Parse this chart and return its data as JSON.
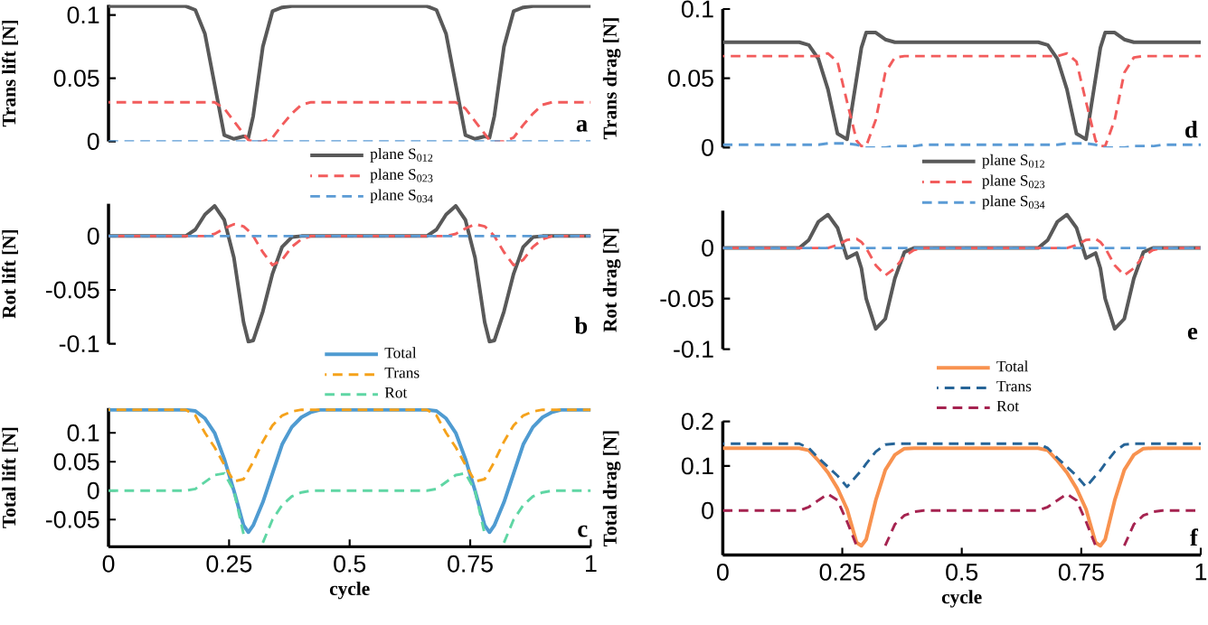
{
  "chart_data": [
    {
      "type": "line",
      "ylabel": "Trans lift [N]",
      "marker": "none",
      "legend": "bottom",
      "tick_labels": "y",
      "annotations": [
        "a"
      ],
      "xlim": [
        0,
        1
      ],
      "ylim": [
        0,
        0.108
      ],
      "yticks": [
        0,
        0.05,
        0.1
      ],
      "x": [
        0,
        0.1,
        0.16,
        0.18,
        0.2,
        0.22,
        0.24,
        0.26,
        0.28,
        0.29,
        0.3,
        0.32,
        0.34,
        0.36,
        0.38,
        0.4,
        0.42,
        0.44,
        0.47,
        0.55,
        0.6,
        0.66,
        0.68,
        0.7,
        0.72,
        0.74,
        0.76,
        0.78,
        0.79,
        0.8,
        0.82,
        0.84,
        0.86,
        0.88,
        0.9,
        0.92,
        0.94,
        0.97,
        1
      ],
      "series": [
        {
          "name": "plane S$_{012}$",
          "color": "#595959",
          "line_style": "solid",
          "values": [
            0.107,
            0.107,
            0.107,
            0.104,
            0.085,
            0.045,
            0.005,
            0.002,
            0.004,
            0.003,
            0.02,
            0.075,
            0.103,
            0.106,
            0.107,
            0.107,
            0.107,
            0.107,
            0.107,
            0.107,
            0.107,
            0.107,
            0.104,
            0.085,
            0.045,
            0.005,
            0.002,
            0.004,
            0.003,
            0.02,
            0.075,
            0.103,
            0.106,
            0.107,
            0.107,
            0.107,
            0.107,
            0.107,
            0.107
          ]
        },
        {
          "name": "plane S$_{023}$",
          "color": "#f25c5c",
          "line_style": "dashed",
          "values": [
            0.031,
            0.031,
            0.031,
            0.031,
            0.031,
            0.031,
            0.026,
            0.016,
            0.006,
            0.001,
            0,
            0,
            0.003,
            0.013,
            0.022,
            0.029,
            0.031,
            0.031,
            0.031,
            0.031,
            0.031,
            0.031,
            0.031,
            0.031,
            0.031,
            0.026,
            0.016,
            0.006,
            0.001,
            0,
            0,
            0.003,
            0.013,
            0.022,
            0.029,
            0.031,
            0.031,
            0.031,
            0.031
          ]
        },
        {
          "name": "plane S$_{034}$",
          "color": "#5b9bd5",
          "line_style": "dashed",
          "values": [
            0,
            0,
            0,
            0,
            0,
            0,
            0,
            0,
            0,
            0,
            0,
            0,
            0,
            0,
            0,
            0,
            0,
            0,
            0,
            0,
            0,
            0,
            0,
            0,
            0,
            0,
            0,
            0,
            0,
            0,
            0,
            0,
            0,
            0,
            0,
            0,
            0,
            0,
            0
          ]
        }
      ]
    },
    {
      "type": "line",
      "ylabel": "Rot lift [N]",
      "marker": "none",
      "tick_labels": "y",
      "annotations": [
        "b"
      ],
      "xlim": [
        0,
        1
      ],
      "ylim": [
        -0.1,
        0.03
      ],
      "yticks": [
        -0.1,
        -0.05,
        0
      ],
      "x": [
        0,
        0.1,
        0.16,
        0.18,
        0.2,
        0.22,
        0.24,
        0.26,
        0.28,
        0.29,
        0.3,
        0.32,
        0.34,
        0.36,
        0.38,
        0.4,
        0.42,
        0.44,
        0.47,
        0.55,
        0.6,
        0.66,
        0.68,
        0.7,
        0.72,
        0.74,
        0.76,
        0.78,
        0.79,
        0.8,
        0.82,
        0.84,
        0.86,
        0.88,
        0.9,
        0.92,
        0.94,
        0.97,
        1
      ],
      "series": [
        {
          "color": "#595959",
          "line_style": "solid",
          "values": [
            0,
            0,
            0,
            0.006,
            0.02,
            0.028,
            0.015,
            -0.02,
            -0.08,
            -0.098,
            -0.097,
            -0.07,
            -0.035,
            -0.01,
            -0.001,
            0,
            0,
            0,
            0,
            0,
            0,
            0,
            0.006,
            0.02,
            0.028,
            0.015,
            -0.02,
            -0.08,
            -0.098,
            -0.097,
            -0.07,
            -0.035,
            -0.01,
            -0.001,
            0,
            0,
            0,
            0,
            0
          ]
        },
        {
          "color": "#f25c5c",
          "line_style": "dashed",
          "values": [
            0,
            0,
            0,
            0,
            0,
            0.002,
            0.007,
            0.011,
            0.009,
            0.005,
            0,
            -0.015,
            -0.027,
            -0.022,
            -0.01,
            -0.003,
            0,
            0,
            0,
            0,
            0,
            0,
            0,
            0,
            0.002,
            0.007,
            0.011,
            0.009,
            0.005,
            0,
            -0.015,
            -0.027,
            -0.022,
            -0.01,
            -0.003,
            0,
            0,
            0,
            0
          ]
        },
        {
          "color": "#5b9bd5",
          "line_style": "dashed",
          "values": [
            0,
            0,
            0,
            0,
            0,
            0,
            0,
            0,
            0,
            0,
            0,
            0,
            0,
            0,
            0,
            0,
            0,
            0,
            0,
            0,
            0,
            0,
            0,
            0,
            0,
            0,
            0,
            0,
            0,
            0,
            0,
            0,
            0,
            0,
            0,
            0,
            0,
            0,
            0
          ]
        }
      ]
    },
    {
      "type": "line",
      "ylabel": "Total lift [N]",
      "xlabel": "cycle",
      "marker": "none",
      "legend": "top",
      "annotations": [
        "c"
      ],
      "xlim": [
        0,
        1
      ],
      "xticks": [
        0,
        0.25,
        0.5,
        0.75,
        1
      ],
      "ylim": [
        -0.097,
        0.143
      ],
      "yticks": [
        -0.05,
        0,
        0.05,
        0.1
      ],
      "x": [
        0,
        0.1,
        0.16,
        0.18,
        0.2,
        0.22,
        0.24,
        0.26,
        0.28,
        0.29,
        0.3,
        0.32,
        0.34,
        0.36,
        0.38,
        0.4,
        0.42,
        0.44,
        0.47,
        0.55,
        0.6,
        0.66,
        0.68,
        0.7,
        0.72,
        0.74,
        0.76,
        0.78,
        0.79,
        0.8,
        0.82,
        0.84,
        0.86,
        0.88,
        0.9,
        0.92,
        0.94,
        0.97,
        1
      ],
      "series": [
        {
          "name": "Total",
          "color": "#4f9bd1",
          "line_style": "solid",
          "values": [
            0.14,
            0.14,
            0.14,
            0.138,
            0.125,
            0.1,
            0.055,
            0,
            -0.06,
            -0.072,
            -0.06,
            -0.02,
            0.03,
            0.08,
            0.11,
            0.127,
            0.136,
            0.14,
            0.14,
            0.14,
            0.14,
            0.14,
            0.138,
            0.125,
            0.1,
            0.055,
            0,
            -0.06,
            -0.072,
            -0.06,
            -0.02,
            0.03,
            0.08,
            0.11,
            0.127,
            0.136,
            0.14,
            0.14,
            0.14
          ]
        },
        {
          "name": "Trans",
          "color": "#f5a21b",
          "line_style": "dashed",
          "values": [
            0.14,
            0.14,
            0.14,
            0.13,
            0.1,
            0.075,
            0.045,
            0.016,
            0.02,
            0.035,
            0.05,
            0.085,
            0.113,
            0.13,
            0.137,
            0.14,
            0.14,
            0.14,
            0.14,
            0.14,
            0.14,
            0.14,
            0.13,
            0.1,
            0.075,
            0.045,
            0.016,
            0.02,
            0.035,
            0.05,
            0.085,
            0.113,
            0.13,
            0.137,
            0.14,
            0.14,
            0.14,
            0.14,
            0.14
          ]
        },
        {
          "name": "Rot",
          "color": "#5fd6a4",
          "line_style": "dashed",
          "values": [
            0,
            0,
            0,
            0.003,
            0.015,
            0.027,
            0.03,
            0,
            -0.075,
            null,
            null,
            -0.09,
            -0.05,
            -0.025,
            -0.01,
            -0.003,
            0,
            0,
            0,
            0,
            0,
            0,
            0.003,
            0.015,
            0.027,
            0.03,
            0,
            -0.075,
            null,
            null,
            -0.09,
            -0.05,
            -0.025,
            -0.01,
            -0.003,
            0,
            0,
            0,
            0
          ]
        }
      ]
    },
    {
      "type": "line",
      "ylabel": "Trans drag [N]",
      "marker": "none",
      "legend": "bottom",
      "tick_labels": "y",
      "annotations": [
        "d"
      ],
      "xlim": [
        0,
        1
      ],
      "ylim": [
        0,
        0.1
      ],
      "yticks": [
        0,
        0.05,
        0.1
      ],
      "x": [
        0,
        0.1,
        0.16,
        0.18,
        0.2,
        0.22,
        0.24,
        0.26,
        0.28,
        0.29,
        0.3,
        0.32,
        0.34,
        0.36,
        0.38,
        0.4,
        0.42,
        0.44,
        0.47,
        0.55,
        0.6,
        0.66,
        0.68,
        0.7,
        0.72,
        0.74,
        0.76,
        0.78,
        0.79,
        0.8,
        0.82,
        0.84,
        0.86,
        0.88,
        0.9,
        0.92,
        0.94,
        0.97,
        1
      ],
      "series": [
        {
          "name": "plane S$_{012}$",
          "color": "#595959",
          "line_style": "solid",
          "values": [
            0.076,
            0.076,
            0.076,
            0.074,
            0.064,
            0.042,
            0.01,
            0.006,
            0.05,
            0.072,
            0.083,
            0.083,
            0.078,
            0.076,
            0.076,
            0.076,
            0.076,
            0.076,
            0.076,
            0.076,
            0.076,
            0.076,
            0.074,
            0.064,
            0.042,
            0.01,
            0.006,
            0.05,
            0.072,
            0.083,
            0.083,
            0.078,
            0.076,
            0.076,
            0.076,
            0.076,
            0.076,
            0.076,
            0.076
          ]
        },
        {
          "name": "plane S$_{023}$",
          "color": "#f25c5c",
          "line_style": "dashed",
          "values": [
            0.066,
            0.066,
            0.066,
            0.066,
            0.066,
            0.068,
            0.062,
            0.033,
            0.005,
            0.001,
            0.001,
            0.02,
            0.054,
            0.065,
            0.066,
            0.066,
            0.066,
            0.066,
            0.066,
            0.066,
            0.066,
            0.066,
            0.066,
            0.066,
            0.068,
            0.062,
            0.033,
            0.005,
            0.001,
            0.001,
            0.02,
            0.054,
            0.065,
            0.066,
            0.066,
            0.066,
            0.066,
            0.066,
            0.066
          ]
        },
        {
          "name": "plane S$_{034}$",
          "color": "#5b9bd5",
          "line_style": "dashed",
          "values": [
            0.002,
            0.002,
            0.002,
            0.002,
            0.002,
            0.003,
            0.003,
            0.003,
            0.002,
            0.001,
            0,
            0,
            0,
            0.001,
            0.001,
            0.001,
            0.002,
            0.002,
            0.002,
            0.002,
            0.002,
            0.002,
            0.002,
            0.002,
            0.003,
            0.003,
            0.003,
            0.002,
            0.001,
            0,
            0,
            0,
            0.001,
            0.001,
            0.001,
            0.002,
            0.002,
            0.002,
            0.002
          ]
        }
      ]
    },
    {
      "type": "line",
      "ylabel": "Rot drag [N]",
      "marker": "none",
      "tick_labels": "y",
      "annotations": [
        "e"
      ],
      "xlim": [
        0,
        1
      ],
      "ylim": [
        -0.1,
        0.037
      ],
      "yticks": [
        -0.1,
        -0.05,
        0
      ],
      "x": [
        0,
        0.1,
        0.16,
        0.18,
        0.2,
        0.22,
        0.24,
        0.26,
        0.28,
        0.29,
        0.3,
        0.32,
        0.34,
        0.36,
        0.38,
        0.4,
        0.42,
        0.44,
        0.47,
        0.55,
        0.6,
        0.66,
        0.68,
        0.7,
        0.72,
        0.74,
        0.76,
        0.78,
        0.79,
        0.8,
        0.82,
        0.84,
        0.86,
        0.88,
        0.9,
        0.92,
        0.94,
        0.97,
        1
      ],
      "series": [
        {
          "color": "#595959",
          "line_style": "solid",
          "values": [
            0,
            0,
            0,
            0.008,
            0.026,
            0.033,
            0.02,
            -0.01,
            -0.005,
            -0.02,
            -0.05,
            -0.08,
            -0.07,
            -0.03,
            -0.004,
            0,
            0,
            0,
            0,
            0,
            0,
            0,
            0.008,
            0.026,
            0.033,
            0.02,
            -0.01,
            -0.005,
            -0.02,
            -0.05,
            -0.08,
            -0.07,
            -0.03,
            -0.004,
            0,
            0,
            0,
            0,
            0
          ]
        },
        {
          "color": "#f25c5c",
          "line_style": "dashed",
          "values": [
            0,
            0,
            0,
            0,
            0,
            0,
            0.003,
            0.008,
            0.009,
            0.006,
            0,
            -0.017,
            -0.027,
            -0.02,
            -0.008,
            -0.002,
            0,
            0,
            0,
            0,
            0,
            0,
            0,
            0,
            0,
            0.003,
            0.008,
            0.009,
            0.006,
            0,
            -0.017,
            -0.027,
            -0.02,
            -0.008,
            -0.002,
            0,
            0,
            0,
            0
          ]
        },
        {
          "color": "#5b9bd5",
          "line_style": "dashed",
          "values": [
            0,
            0,
            0,
            0,
            0,
            0,
            0,
            0,
            0,
            0,
            0,
            0,
            0,
            0,
            0,
            0,
            0,
            0,
            0,
            0,
            0,
            0,
            0,
            0,
            0,
            0,
            0,
            0,
            0,
            0,
            0,
            0,
            0,
            0,
            0,
            0,
            0,
            0,
            0
          ]
        }
      ]
    },
    {
      "type": "line",
      "ylabel": "Total drag [N]",
      "xlabel": "cycle",
      "marker": "none",
      "legend": "top",
      "annotations": [
        "f"
      ],
      "xlim": [
        0,
        1
      ],
      "xticks": [
        0,
        0.25,
        0.5,
        0.75,
        1
      ],
      "ylim": [
        -0.1,
        0.2
      ],
      "yticks": [
        0,
        0.1,
        0.2
      ],
      "x": [
        0,
        0.1,
        0.16,
        0.18,
        0.2,
        0.22,
        0.24,
        0.26,
        0.28,
        0.29,
        0.3,
        0.32,
        0.34,
        0.36,
        0.38,
        0.4,
        0.42,
        0.44,
        0.47,
        0.55,
        0.6,
        0.66,
        0.68,
        0.7,
        0.72,
        0.74,
        0.76,
        0.78,
        0.79,
        0.8,
        0.82,
        0.84,
        0.86,
        0.88,
        0.9,
        0.92,
        0.94,
        0.97,
        1
      ],
      "series": [
        {
          "name": "Total",
          "color": "#f8924f",
          "line_style": "solid",
          "values": [
            0.14,
            0.14,
            0.14,
            0.135,
            0.112,
            0.085,
            0.05,
            0.003,
            -0.072,
            -0.079,
            -0.065,
            0.023,
            0.091,
            0.125,
            0.139,
            0.14,
            0.14,
            0.14,
            0.14,
            0.14,
            0.14,
            0.14,
            0.135,
            0.112,
            0.085,
            0.05,
            0.003,
            -0.072,
            -0.079,
            -0.065,
            0.023,
            0.091,
            0.125,
            0.139,
            0.14,
            0.14,
            0.14,
            0.14,
            0.14
          ]
        },
        {
          "name": "Trans",
          "color": "#266497",
          "line_style": "dashed",
          "values": [
            0.15,
            0.15,
            0.15,
            0.14,
            0.118,
            0.098,
            0.078,
            0.053,
            0.078,
            0.09,
            0.105,
            0.132,
            0.148,
            0.15,
            0.15,
            0.15,
            0.15,
            0.15,
            0.15,
            0.15,
            0.15,
            0.15,
            0.14,
            0.118,
            0.098,
            0.078,
            0.053,
            0.078,
            0.09,
            0.105,
            0.132,
            0.148,
            0.15,
            0.15,
            0.15,
            0.15,
            0.15,
            0.15,
            0.15
          ]
        },
        {
          "name": "Rot",
          "color": "#a52350",
          "line_style": "dashed",
          "values": [
            0,
            0,
            0,
            0.008,
            0.023,
            0.037,
            0.023,
            -0.025,
            -0.079,
            null,
            null,
            null,
            -0.079,
            -0.031,
            -0.011,
            -0.003,
            0,
            0,
            0,
            0,
            0,
            0,
            0.008,
            0.023,
            0.037,
            0.023,
            -0.025,
            -0.079,
            null,
            null,
            null,
            -0.079,
            -0.031,
            -0.011,
            -0.003,
            0,
            0,
            0,
            0
          ]
        }
      ]
    }
  ]
}
